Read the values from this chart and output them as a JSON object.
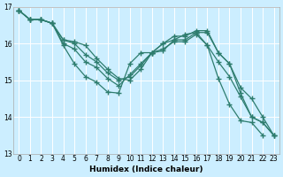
{
  "xlabel": "Humidex (Indice chaleur)",
  "bg_color": "#cceeff",
  "grid_color": "#ffffff",
  "line_color": "#2e7d6e",
  "xlim": [
    -0.5,
    23.5
  ],
  "ylim": [
    13,
    17
  ],
  "yticks": [
    13,
    14,
    15,
    16,
    17
  ],
  "xticks": [
    0,
    1,
    2,
    3,
    4,
    5,
    6,
    7,
    8,
    9,
    10,
    11,
    12,
    13,
    14,
    15,
    16,
    17,
    18,
    19,
    20,
    21,
    22,
    23
  ],
  "series": [
    {
      "x": [
        0,
        1,
        2,
        3,
        4,
        5,
        6,
        7,
        8,
        9,
        10,
        11,
        12,
        13,
        14,
        15,
        16,
        17,
        18,
        19,
        20,
        21,
        22,
        23
      ],
      "y": [
        16.9,
        16.65,
        16.65,
        16.55,
        15.95,
        15.45,
        15.1,
        14.95,
        14.68,
        14.65,
        15.45,
        15.75,
        15.75,
        15.8,
        16.1,
        16.25,
        16.3,
        15.95,
        15.05,
        14.35,
        13.9,
        13.85,
        13.5,
        null
      ]
    },
    {
      "x": [
        0,
        1,
        2,
        3,
        4,
        5,
        6,
        7,
        8,
        9,
        10,
        11,
        12,
        13,
        14,
        15,
        16,
        17,
        18,
        19,
        20,
        21,
        22,
        23
      ],
      "y": [
        16.9,
        16.65,
        16.65,
        16.55,
        16.0,
        15.85,
        15.5,
        15.35,
        15.05,
        14.85,
        15.15,
        15.45,
        15.75,
        15.85,
        16.05,
        16.05,
        16.25,
        15.95,
        15.5,
        15.1,
        14.55,
        14.0,
        13.85,
        13.5
      ]
    },
    {
      "x": [
        0,
        1,
        2,
        3,
        4,
        5,
        6,
        7,
        8,
        9,
        10,
        11,
        12,
        13,
        14,
        15,
        16,
        17,
        18,
        19,
        20,
        21,
        22,
        23
      ],
      "y": [
        16.9,
        16.65,
        16.65,
        16.55,
        16.1,
        16.0,
        15.7,
        15.5,
        15.2,
        15.0,
        15.1,
        15.4,
        15.75,
        16.0,
        16.1,
        16.1,
        16.3,
        16.3,
        15.75,
        15.45,
        14.65,
        14.0,
        13.85,
        13.5
      ]
    },
    {
      "x": [
        0,
        1,
        2,
        3,
        4,
        5,
        6,
        7,
        8,
        9,
        10,
        11,
        12,
        13,
        14,
        15,
        16,
        17,
        18,
        19,
        20,
        21,
        22,
        23
      ],
      "y": [
        16.9,
        16.65,
        16.65,
        16.55,
        16.1,
        16.05,
        15.95,
        15.6,
        15.3,
        15.05,
        15.0,
        15.3,
        15.75,
        16.0,
        16.2,
        16.2,
        16.35,
        16.35,
        15.75,
        15.45,
        14.8,
        14.5,
        14.0,
        13.5
      ]
    }
  ]
}
